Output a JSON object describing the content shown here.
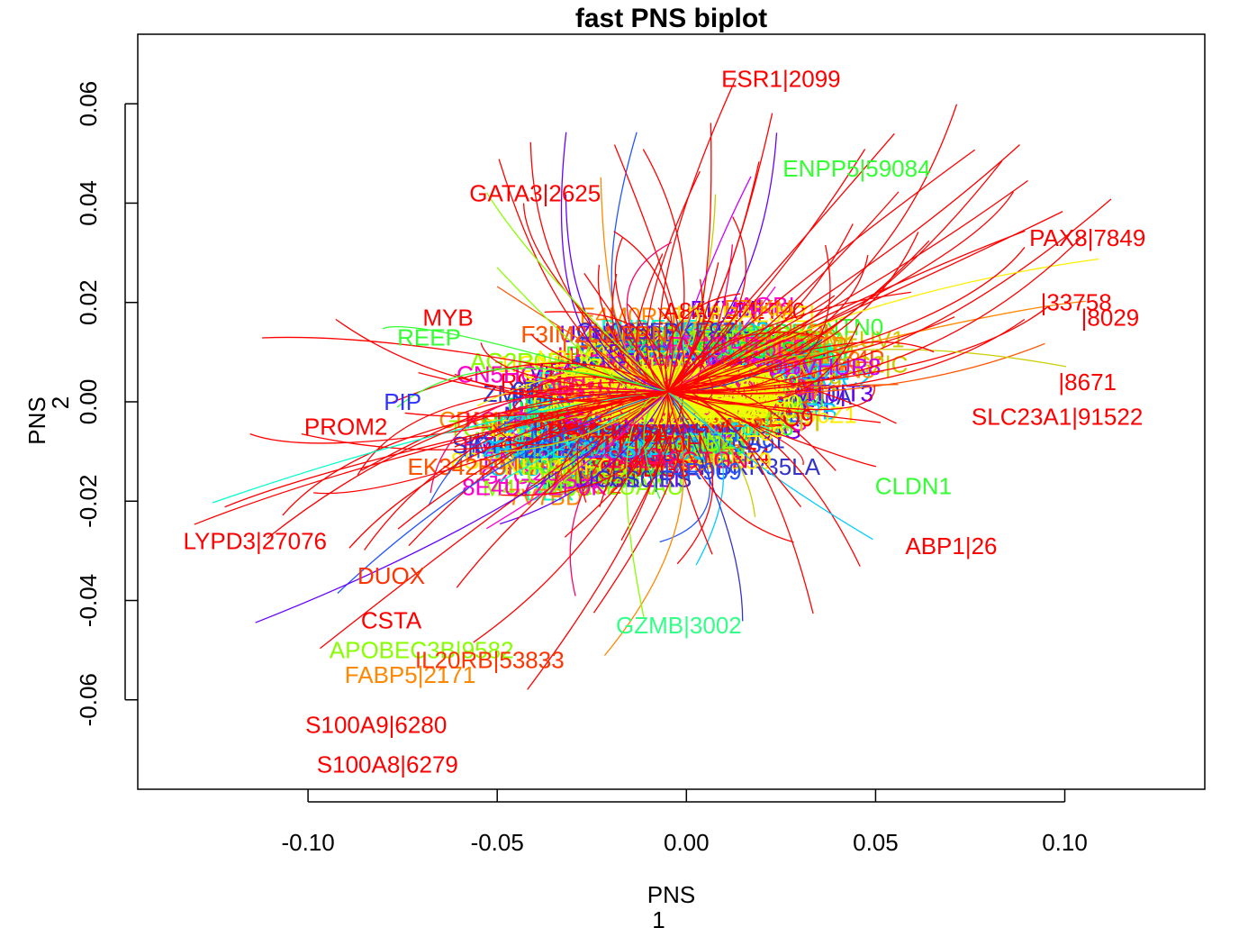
{
  "chart_data": {
    "type": "scatter",
    "title": "fast PNS biplot",
    "xlabel": "PNS",
    "xlabel_sub": "1",
    "ylabel": "PNS",
    "ylabel_sub": "2",
    "xlim": [
      -0.145,
      0.137
    ],
    "ylim": [
      -0.078,
      0.074
    ],
    "xticks": [
      -0.1,
      -0.05,
      0.0,
      0.05,
      0.1
    ],
    "xtick_labels": [
      "-0.10",
      "-0.05",
      "0.00",
      "0.05",
      "0.10"
    ],
    "yticks": [
      -0.06,
      -0.04,
      -0.02,
      0.0,
      0.02,
      0.04,
      0.06
    ],
    "ytick_labels": [
      "-0.06",
      "-0.04",
      "-0.02",
      "0.00",
      "0.02",
      "0.04",
      "0.06"
    ],
    "grid": false,
    "labeled_points": [
      {
        "label": "ESR1|2099",
        "x": 0.025,
        "y": 0.065,
        "color": "#ff0000"
      },
      {
        "label": "GATA3|2625",
        "x": -0.04,
        "y": 0.042,
        "color": "#ff0000"
      },
      {
        "label": "ENPP5|59084",
        "x": 0.045,
        "y": 0.047,
        "color": "#33ff33"
      },
      {
        "label": "PAX8|7849",
        "x": 0.106,
        "y": 0.033,
        "color": "#ff0000"
      },
      {
        "label": "|8029",
        "x": 0.112,
        "y": 0.017,
        "color": "#ff0000"
      },
      {
        "label": "|33758",
        "x": 0.103,
        "y": 0.02,
        "color": "#ff0000"
      },
      {
        "label": "|8671",
        "x": 0.106,
        "y": 0.004,
        "color": "#ff0000"
      },
      {
        "label": "SLC23A1|91522",
        "x": 0.098,
        "y": -0.003,
        "color": "#ff0000"
      },
      {
        "label": "MYB",
        "x": -0.063,
        "y": 0.017,
        "color": "#ff0000"
      },
      {
        "label": "REEP",
        "x": -0.068,
        "y": 0.013,
        "color": "#33ff33"
      },
      {
        "label": "PROM2",
        "x": -0.09,
        "y": -0.005,
        "color": "#ff0000"
      },
      {
        "label": "LYPD3|27076",
        "x": -0.114,
        "y": -0.028,
        "color": "#ff0000"
      },
      {
        "label": "ABP1|26",
        "x": 0.07,
        "y": -0.029,
        "color": "#ff0000"
      },
      {
        "label": "DUOX",
        "x": -0.078,
        "y": -0.035,
        "color": "#ff3300"
      },
      {
        "label": "CSTA",
        "x": -0.078,
        "y": -0.044,
        "color": "#ff0000"
      },
      {
        "label": "APOBEC3B|9582",
        "x": -0.07,
        "y": -0.05,
        "color": "#88ff00"
      },
      {
        "label": "FABP5|2171",
        "x": -0.073,
        "y": -0.055,
        "color": "#ff8800"
      },
      {
        "label": "IL20RB|53833",
        "x": -0.052,
        "y": -0.052,
        "color": "#ff3300"
      },
      {
        "label": "GZMB|3002",
        "x": -0.002,
        "y": -0.045,
        "color": "#33ff88"
      },
      {
        "label": "S100A9|6280",
        "x": -0.082,
        "y": -0.065,
        "color": "#ff0000"
      },
      {
        "label": "S100A8|6279",
        "x": -0.079,
        "y": -0.073,
        "color": "#ff0000"
      },
      {
        "label": "CLDN1",
        "x": 0.06,
        "y": -0.017,
        "color": "#33ff33"
      },
      {
        "label": "PIP",
        "x": -0.075,
        "y": 0.0,
        "color": "#3333ff"
      }
    ]
  }
}
